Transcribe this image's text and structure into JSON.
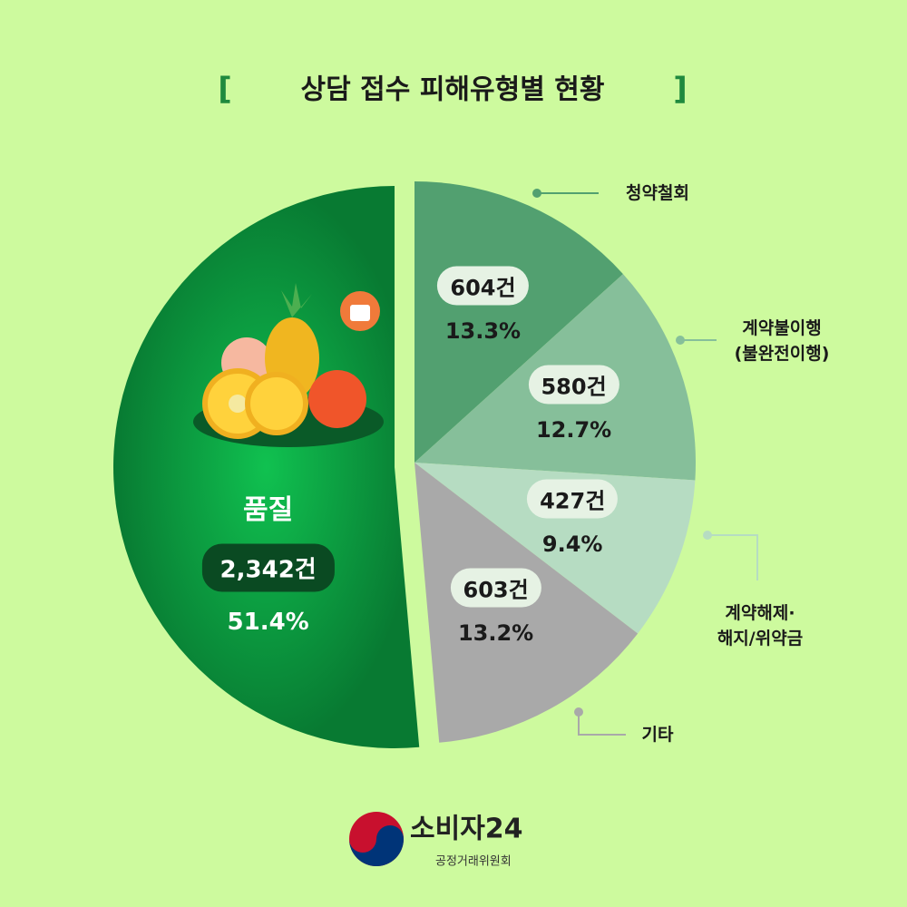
{
  "chart_data": {
    "type": "pie",
    "title": "상담 접수 피해유형별 현황",
    "categories": [
      "청약철회",
      "계약불이행\n(불완전이행)",
      "계약해제·\n해지/위약금",
      "기타",
      "품질"
    ],
    "values": [
      13.3,
      12.7,
      9.4,
      13.2,
      51.4
    ],
    "value_labels": [
      "13.3%",
      "12.7%",
      "9.4%",
      "13.2%",
      "51.4%"
    ],
    "counts": [
      604,
      580,
      427,
      603,
      2342
    ],
    "count_labels": [
      "604건",
      "580건",
      "427건",
      "603건",
      "2,342건"
    ],
    "colors": [
      "#52a070",
      "#86bf9a",
      "#b6dcc2",
      "#a9a9a9",
      "#0b8a3c"
    ]
  },
  "logo": {
    "name": "소비자24",
    "org": "공정거래위원회"
  }
}
